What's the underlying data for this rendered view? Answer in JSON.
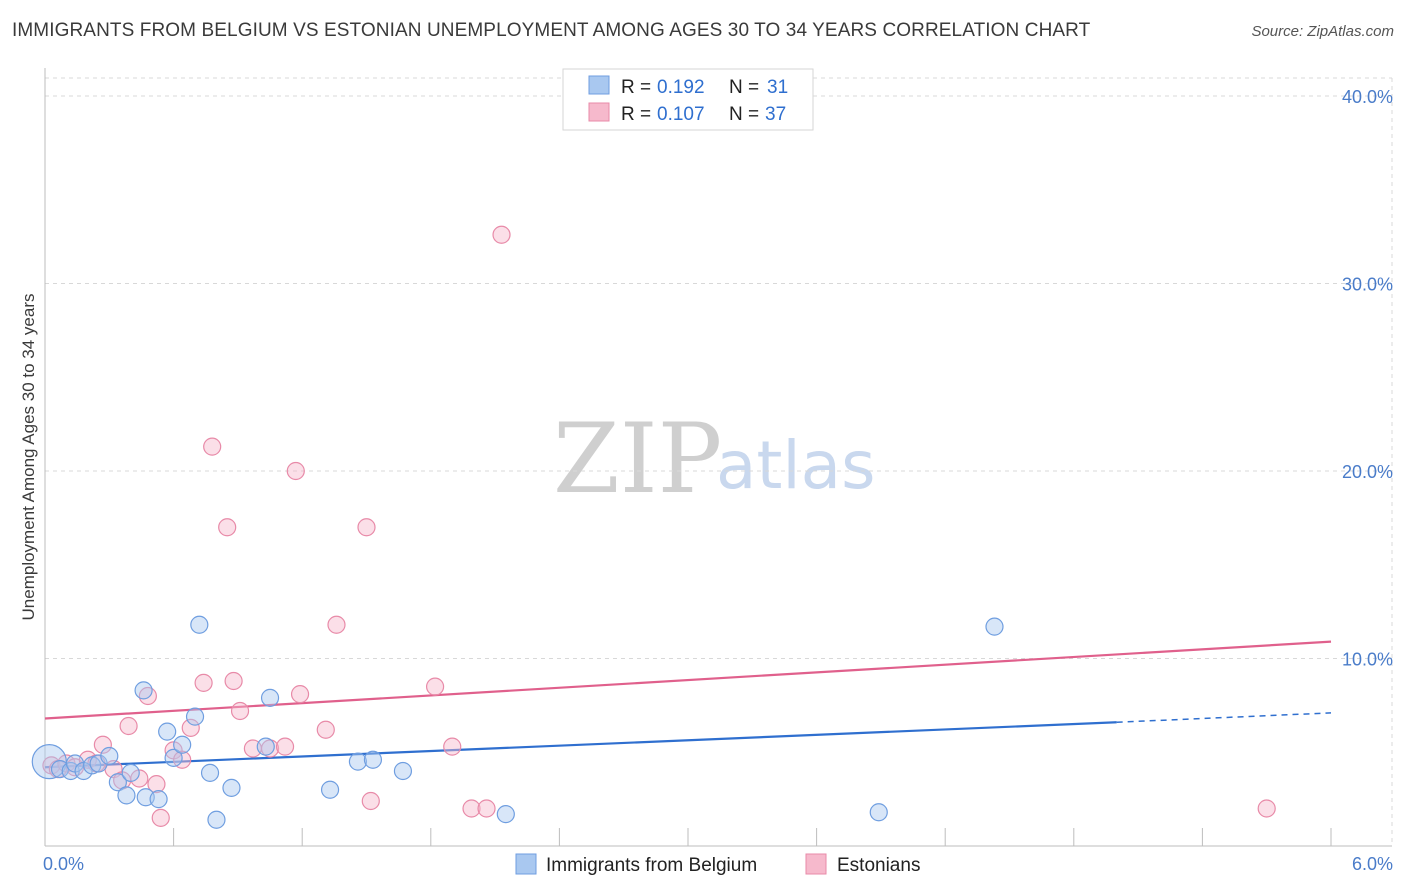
{
  "title": "IMMIGRANTS FROM BELGIUM VS ESTONIAN UNEMPLOYMENT AMONG AGES 30 TO 34 YEARS CORRELATION CHART",
  "source": "Source: ZipAtlas.com",
  "watermark": {
    "zip": "ZIP",
    "atlas": "atlas"
  },
  "colors": {
    "blue_fill": "#a9c8f0",
    "blue_stroke": "#6f9ee0",
    "blue_line": "#2f6fcf",
    "pink_fill": "#f6b9cc",
    "pink_stroke": "#e88aa8",
    "pink_line": "#e0608c",
    "grid": "#d8d8d8",
    "tick_label": "#4a7cc9"
  },
  "legend": {
    "rows": [
      {
        "r_label": "R =",
        "r_value": "0.192",
        "n_label": "N =",
        "n_value": "31"
      },
      {
        "r_label": "R =",
        "r_value": "0.107",
        "n_label": "N =",
        "n_value": "37"
      }
    ]
  },
  "chart_data": {
    "type": "scatter",
    "title": "IMMIGRANTS FROM BELGIUM VS ESTONIAN UNEMPLOYMENT AMONG AGES 30 TO 34 YEARS CORRELATION CHART",
    "xlabel": "",
    "ylabel": "Unemployment Among Ages 30 to 34 years",
    "xlim": [
      0,
      6
    ],
    "ylim": [
      0,
      40
    ],
    "x_tick_labels": [
      "0.0%",
      "6.0%"
    ],
    "y_ticks": [
      10,
      20,
      30,
      40
    ],
    "y_tick_labels": [
      "10.0%",
      "20.0%",
      "30.0%",
      "40.0%"
    ],
    "grid": true,
    "legend_position": "top-center",
    "series": [
      {
        "name": "Immigrants from Belgium",
        "color": "blue",
        "R": 0.192,
        "N": 31,
        "trend": {
          "x0": 0,
          "y0": 4.2,
          "x1": 5.0,
          "y1": 6.6,
          "dashed_to_x": 6.0,
          "dashed_to_y": 7.1
        },
        "points": [
          {
            "x": 0.02,
            "y": 4.5,
            "big": true
          },
          {
            "x": 0.07,
            "y": 4.1
          },
          {
            "x": 0.12,
            "y": 4.0
          },
          {
            "x": 0.14,
            "y": 4.4
          },
          {
            "x": 0.18,
            "y": 4.0
          },
          {
            "x": 0.22,
            "y": 4.3
          },
          {
            "x": 0.25,
            "y": 4.4
          },
          {
            "x": 0.3,
            "y": 4.8
          },
          {
            "x": 0.34,
            "y": 3.4
          },
          {
            "x": 0.38,
            "y": 2.7
          },
          {
            "x": 0.4,
            "y": 3.9
          },
          {
            "x": 0.46,
            "y": 8.3
          },
          {
            "x": 0.47,
            "y": 2.6
          },
          {
            "x": 0.53,
            "y": 2.5
          },
          {
            "x": 0.57,
            "y": 6.1
          },
          {
            "x": 0.6,
            "y": 4.7
          },
          {
            "x": 0.64,
            "y": 5.4
          },
          {
            "x": 0.7,
            "y": 6.9
          },
          {
            "x": 0.72,
            "y": 11.8
          },
          {
            "x": 0.77,
            "y": 3.9
          },
          {
            "x": 0.8,
            "y": 1.4
          },
          {
            "x": 0.87,
            "y": 3.1
          },
          {
            "x": 1.03,
            "y": 5.3
          },
          {
            "x": 1.05,
            "y": 7.9
          },
          {
            "x": 1.33,
            "y": 3.0
          },
          {
            "x": 1.46,
            "y": 4.5
          },
          {
            "x": 1.53,
            "y": 4.6
          },
          {
            "x": 1.67,
            "y": 4.0
          },
          {
            "x": 2.15,
            "y": 1.7
          },
          {
            "x": 3.89,
            "y": 1.8
          },
          {
            "x": 4.43,
            "y": 11.7
          }
        ]
      },
      {
        "name": "Estonians",
        "color": "pink",
        "R": 0.107,
        "N": 37,
        "trend": {
          "x0": 0,
          "y0": 6.8,
          "x1": 6.0,
          "y1": 10.9
        },
        "points": [
          {
            "x": 0.03,
            "y": 4.3
          },
          {
            "x": 0.06,
            "y": 4.1
          },
          {
            "x": 0.1,
            "y": 4.4
          },
          {
            "x": 0.14,
            "y": 4.2
          },
          {
            "x": 0.2,
            "y": 4.6
          },
          {
            "x": 0.24,
            "y": 4.4
          },
          {
            "x": 0.27,
            "y": 5.4
          },
          {
            "x": 0.32,
            "y": 4.1
          },
          {
            "x": 0.36,
            "y": 3.5
          },
          {
            "x": 0.39,
            "y": 6.4
          },
          {
            "x": 0.44,
            "y": 3.6
          },
          {
            "x": 0.48,
            "y": 8.0
          },
          {
            "x": 0.52,
            "y": 3.3
          },
          {
            "x": 0.54,
            "y": 1.5
          },
          {
            "x": 0.6,
            "y": 5.1
          },
          {
            "x": 0.64,
            "y": 4.6
          },
          {
            "x": 0.68,
            "y": 6.3
          },
          {
            "x": 0.74,
            "y": 8.7
          },
          {
            "x": 0.78,
            "y": 21.3
          },
          {
            "x": 0.85,
            "y": 17.0
          },
          {
            "x": 0.88,
            "y": 8.8
          },
          {
            "x": 0.91,
            "y": 7.2
          },
          {
            "x": 0.97,
            "y": 5.2
          },
          {
            "x": 1.05,
            "y": 5.2
          },
          {
            "x": 1.12,
            "y": 5.3
          },
          {
            "x": 1.17,
            "y": 20.0
          },
          {
            "x": 1.19,
            "y": 8.1
          },
          {
            "x": 1.31,
            "y": 6.2
          },
          {
            "x": 1.36,
            "y": 11.8
          },
          {
            "x": 1.5,
            "y": 17.0
          },
          {
            "x": 1.52,
            "y": 2.4
          },
          {
            "x": 1.82,
            "y": 8.5
          },
          {
            "x": 1.9,
            "y": 5.3
          },
          {
            "x": 1.99,
            "y": 2.0
          },
          {
            "x": 2.06,
            "y": 2.0
          },
          {
            "x": 2.13,
            "y": 32.6
          },
          {
            "x": 5.7,
            "y": 2.0
          }
        ]
      }
    ]
  }
}
